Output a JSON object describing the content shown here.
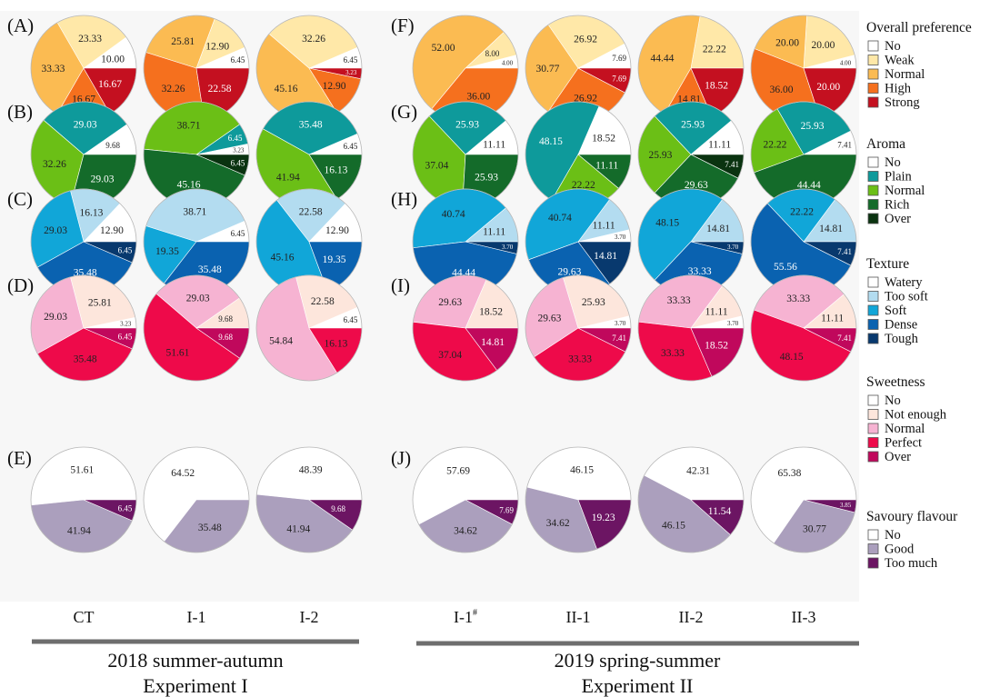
{
  "panels": [
    {
      "letter": "(A)",
      "category": "overall",
      "series": [
        {
          "name": "CT",
          "values": [
            10.0,
            23.33,
            33.33,
            16.67,
            16.67
          ],
          "labels": [
            "10.00",
            "23.33",
            "33.33",
            "16.67",
            "16.67"
          ]
        },
        {
          "name": "I-1",
          "values": [
            6.45,
            12.9,
            25.81,
            32.26,
            22.58
          ],
          "labels": [
            "6.45",
            "12.90",
            "25.81",
            "32.26",
            "22.58"
          ]
        },
        {
          "name": "I-2",
          "values": [
            6.45,
            32.26,
            45.16,
            12.9,
            3.23
          ],
          "labels": [
            "6.45",
            "32.26",
            "45.16",
            "12.90",
            "3.23"
          ]
        }
      ]
    },
    {
      "letter": "(F)",
      "category": "overall",
      "series": [
        {
          "name": "I-1#",
          "values": [
            4.0,
            8.0,
            52.0,
            36.0,
            0
          ],
          "labels": [
            "4.00",
            "8.00",
            "52.00",
            "36.00",
            ""
          ]
        },
        {
          "name": "II-1",
          "values": [
            7.69,
            26.92,
            30.77,
            26.92,
            7.69
          ],
          "labels": [
            "7.69",
            "26.92",
            "30.77",
            "26.92",
            "7.69"
          ]
        },
        {
          "name": "II-2",
          "values": [
            0,
            22.22,
            44.44,
            14.81,
            18.52
          ],
          "labels": [
            "",
            "22.22",
            "44.44",
            "14.81",
            "18.52"
          ]
        },
        {
          "name": "II-3",
          "values": [
            4.0,
            20.0,
            20.0,
            36.0,
            20.0
          ],
          "labels": [
            "4.00",
            "20.00",
            "20.00",
            "36.00",
            "20.00"
          ]
        }
      ]
    },
    {
      "letter": "(B)",
      "category": "aroma",
      "series": [
        {
          "name": "CT",
          "values": [
            9.68,
            29.03,
            32.26,
            29.03,
            0
          ],
          "labels": [
            "9.68",
            "29.03",
            "32.26",
            "29.03",
            ""
          ]
        },
        {
          "name": "I-1",
          "values": [
            3.23,
            6.45,
            38.71,
            45.16,
            6.45
          ],
          "labels": [
            "3.23",
            "6.45",
            "38.71",
            "45.16",
            "6.45"
          ]
        },
        {
          "name": "I-2",
          "values": [
            6.45,
            35.48,
            41.94,
            16.13,
            0
          ],
          "labels": [
            "6.45",
            "35.48",
            "41.94",
            "16.13",
            ""
          ]
        }
      ]
    },
    {
      "letter": "(G)",
      "category": "aroma",
      "series": [
        {
          "name": "I-1#",
          "values": [
            11.11,
            25.93,
            37.04,
            25.93,
            0
          ],
          "labels": [
            "11.11",
            "25.93",
            "37.04",
            "25.93",
            ""
          ]
        },
        {
          "name": "II-1",
          "values": [
            18.52,
            48.15,
            22.22,
            11.11,
            0
          ],
          "labels": [
            "18.52",
            "48.15",
            "22.22",
            "11.11",
            ""
          ]
        },
        {
          "name": "II-2",
          "values": [
            11.11,
            25.93,
            25.93,
            29.63,
            7.41
          ],
          "labels": [
            "11.11",
            "25.93",
            "25.93",
            "29.63",
            "7.41"
          ]
        },
        {
          "name": "II-3",
          "values": [
            7.41,
            25.93,
            22.22,
            44.44,
            0
          ],
          "labels": [
            "7.41",
            "25.93",
            "22.22",
            "44.44",
            ""
          ]
        }
      ]
    },
    {
      "letter": "(C)",
      "category": "texture",
      "series": [
        {
          "name": "CT",
          "values": [
            12.9,
            16.13,
            29.03,
            35.48,
            6.45
          ],
          "labels": [
            "12.90",
            "16.13",
            "29.03",
            "35.48",
            "6.45"
          ]
        },
        {
          "name": "I-1",
          "values": [
            6.45,
            38.71,
            19.35,
            35.48,
            0
          ],
          "labels": [
            "6.45",
            "38.71",
            "19.35",
            "35.48",
            ""
          ]
        },
        {
          "name": "I-2",
          "values": [
            12.9,
            22.58,
            45.16,
            19.35,
            0
          ],
          "labels": [
            "12.90",
            "22.58",
            "45.16",
            "19.35",
            ""
          ]
        }
      ]
    },
    {
      "letter": "(H)",
      "category": "texture",
      "series": [
        {
          "name": "I-1#",
          "values": [
            0,
            11.11,
            40.74,
            44.44,
            3.7
          ],
          "labels": [
            "",
            "11.11",
            "40.74",
            "44.44",
            "3.70"
          ]
        },
        {
          "name": "II-1",
          "values": [
            3.7,
            11.11,
            40.74,
            29.63,
            14.81
          ],
          "labels": [
            "3.70",
            "11.11",
            "40.74",
            "29.63",
            "14.81"
          ]
        },
        {
          "name": "II-2",
          "values": [
            0,
            14.81,
            48.15,
            33.33,
            3.7
          ],
          "labels": [
            "",
            "14.81",
            "48.15",
            "33.33",
            "3.70"
          ]
        },
        {
          "name": "II-3",
          "values": [
            0,
            14.81,
            22.22,
            55.56,
            7.41
          ],
          "labels": [
            "",
            "14.81",
            "22.22",
            "55.56",
            "7.41"
          ]
        }
      ]
    },
    {
      "letter": "(D)",
      "category": "sweetness",
      "series": [
        {
          "name": "CT",
          "values": [
            3.23,
            25.81,
            29.03,
            35.48,
            6.45
          ],
          "labels": [
            "3.23",
            "25.81",
            "29.03",
            "35.48",
            "6.45"
          ]
        },
        {
          "name": "I-1",
          "values": [
            0,
            9.68,
            29.03,
            51.61,
            9.68
          ],
          "labels": [
            "",
            "9.68",
            "29.03",
            "51.61",
            "9.68"
          ]
        },
        {
          "name": "I-2",
          "values": [
            6.45,
            22.58,
            54.84,
            16.13,
            0
          ],
          "labels": [
            "6.45",
            "22.58",
            "54.84",
            "16.13",
            ""
          ]
        }
      ]
    },
    {
      "letter": "(I)",
      "category": "sweetness",
      "series": [
        {
          "name": "I-1#",
          "values": [
            0,
            18.52,
            29.63,
            37.04,
            14.81
          ],
          "labels": [
            "",
            "18.52",
            "29.63",
            "37.04",
            "14.81"
          ]
        },
        {
          "name": "II-1",
          "values": [
            3.7,
            25.93,
            29.63,
            33.33,
            7.41
          ],
          "labels": [
            "3.70",
            "25.93",
            "29.63",
            "33.33",
            "7.41"
          ]
        },
        {
          "name": "II-2",
          "values": [
            3.7,
            11.11,
            33.33,
            33.33,
            18.52
          ],
          "labels": [
            "3.70",
            "11.11",
            "33.33",
            "33.33",
            "18.52"
          ]
        },
        {
          "name": "II-3",
          "values": [
            0,
            11.11,
            33.33,
            48.15,
            7.41
          ],
          "labels": [
            "",
            "11.11",
            "33.33",
            "48.15",
            "7.41"
          ]
        }
      ]
    },
    {
      "letter": "(E)",
      "category": "savoury",
      "series": [
        {
          "name": "CT",
          "values": [
            51.61,
            41.94,
            6.45
          ],
          "labels": [
            "51.61",
            "41.94",
            "6.45"
          ]
        },
        {
          "name": "I-1",
          "values": [
            64.52,
            35.48,
            0
          ],
          "labels": [
            "64.52",
            "35.48",
            ""
          ]
        },
        {
          "name": "I-2",
          "values": [
            48.39,
            41.94,
            9.68
          ],
          "labels": [
            "48.39",
            "41.94",
            "9.68"
          ]
        }
      ]
    },
    {
      "letter": "(J)",
      "category": "savoury",
      "series": [
        {
          "name": "I-1#",
          "values": [
            57.69,
            34.62,
            7.69
          ],
          "labels": [
            "57.69",
            "34.62",
            "7.69"
          ]
        },
        {
          "name": "II-1",
          "values": [
            46.15,
            34.62,
            19.23
          ],
          "labels": [
            "46.15",
            "34.62",
            "19.23"
          ]
        },
        {
          "name": "II-2",
          "values": [
            42.31,
            46.15,
            11.54
          ],
          "labels": [
            "42.31",
            "46.15",
            "11.54"
          ]
        },
        {
          "name": "II-3",
          "values": [
            65.38,
            30.77,
            3.85
          ],
          "labels": [
            "65.38",
            "30.77",
            "3.85"
          ]
        }
      ]
    }
  ],
  "legends": [
    {
      "key": "overall",
      "title": "Overall preference",
      "items": [
        "No",
        "Weak",
        "Normal",
        "High",
        "Strong"
      ],
      "colors": [
        "#ffffff",
        "#ffe8a8",
        "#fbbb52",
        "#f5701e",
        "#c41020"
      ]
    },
    {
      "key": "aroma",
      "title": "Aroma",
      "items": [
        "No",
        "Plain",
        "Normal",
        "Rich",
        "Over"
      ],
      "colors": [
        "#ffffff",
        "#0e9a9b",
        "#6bbf16",
        "#146b2a",
        "#0a3310"
      ]
    },
    {
      "key": "texture",
      "title": "Texture",
      "items": [
        "Watery",
        "Too soft",
        "Soft",
        "Dense",
        "Tough"
      ],
      "colors": [
        "#ffffff",
        "#b3dcf0",
        "#11a6d8",
        "#0a62b0",
        "#08396e"
      ]
    },
    {
      "key": "sweetness",
      "title": "Sweetness",
      "items": [
        "No",
        "Not enough",
        "Normal",
        "Perfect",
        "Over"
      ],
      "colors": [
        "#ffffff",
        "#fde6dc",
        "#f6b3d2",
        "#ee0a4a",
        "#c0085c"
      ]
    },
    {
      "key": "savoury",
      "title": "Savoury flavour",
      "items": [
        "No",
        "Good",
        "Too much"
      ],
      "colors": [
        "#ffffff",
        "#ab9fbd",
        "#6c1563"
      ]
    }
  ],
  "column_labels": [
    {
      "text": "CT",
      "sup": ""
    },
    {
      "text": "I-1",
      "sup": ""
    },
    {
      "text": "I-2",
      "sup": ""
    },
    {
      "text": "I-1",
      "sup": "#"
    },
    {
      "text": "II-1",
      "sup": ""
    },
    {
      "text": "II-2",
      "sup": ""
    },
    {
      "text": "II-3",
      "sup": ""
    }
  ],
  "experiments": [
    {
      "line1": "2018 summer-autumn",
      "line2": "Experiment I"
    },
    {
      "line1": "2019 spring-summer",
      "line2": "Experiment II"
    }
  ],
  "chart_data": {
    "type": "pie",
    "note_categories_order": "per legend items order",
    "groups": [
      "Overall preference",
      "Aroma",
      "Texture",
      "Sweetness",
      "Savoury flavour"
    ]
  }
}
